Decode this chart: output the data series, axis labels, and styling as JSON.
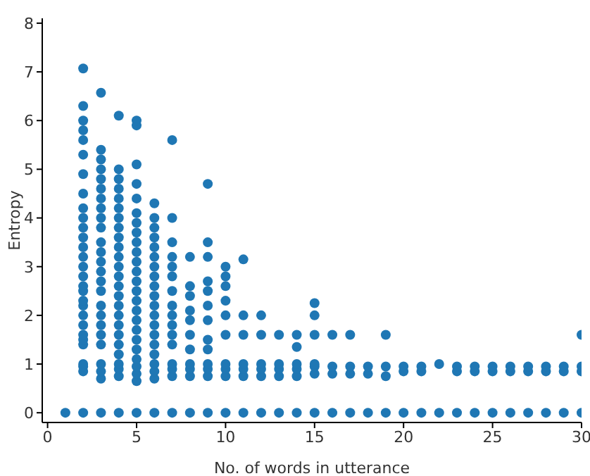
{
  "chart_data": {
    "type": "scatter",
    "xlabel": "No. of words in utterance",
    "ylabel": "Entropy",
    "xlim": [
      -0.3,
      30
    ],
    "ylim": [
      -0.2,
      8.1
    ],
    "xticks": [
      0,
      5,
      10,
      15,
      20,
      25,
      30
    ],
    "yticks": [
      0,
      1,
      2,
      3,
      4,
      5,
      6,
      7,
      8
    ],
    "grid": false,
    "legend": false,
    "marker": "circle",
    "series": [
      {
        "color": "#1f77b4",
        "x": [
          1,
          2,
          2,
          2,
          2,
          2,
          2,
          2,
          2,
          2,
          2,
          2,
          2,
          2,
          2,
          2,
          2,
          2,
          2,
          2,
          2,
          2,
          2,
          2,
          2,
          2,
          2,
          2,
          2,
          2,
          3,
          3,
          3,
          3,
          3,
          3,
          3,
          3,
          3,
          3,
          3,
          3,
          3,
          3,
          3,
          3,
          3,
          3,
          3,
          3,
          3,
          3,
          3,
          3,
          3,
          4,
          4,
          4,
          4,
          4,
          4,
          4,
          4,
          4,
          4,
          4,
          4,
          4,
          4,
          4,
          4,
          4,
          4,
          4,
          4,
          4,
          4,
          4,
          4,
          4,
          5,
          5,
          5,
          5,
          5,
          5,
          5,
          5,
          5,
          5,
          5,
          5,
          5,
          5,
          5,
          5,
          5,
          5,
          5,
          5,
          5,
          5,
          5,
          5,
          5,
          6,
          6,
          6,
          6,
          6,
          6,
          6,
          6,
          6,
          6,
          6,
          6,
          6,
          6,
          6,
          6,
          6,
          6,
          6,
          6,
          7,
          7,
          7,
          7,
          7,
          7,
          7,
          7,
          7,
          7,
          7,
          7,
          7,
          7,
          7,
          7,
          8,
          8,
          8,
          8,
          8,
          8,
          8,
          8,
          8,
          8,
          8,
          9,
          9,
          9,
          9,
          9,
          9,
          9,
          9,
          9,
          9,
          9,
          9,
          9,
          10,
          10,
          10,
          10,
          10,
          10,
          10,
          10,
          10,
          10,
          11,
          11,
          11,
          11,
          11,
          11,
          11,
          12,
          12,
          12,
          12,
          12,
          12,
          13,
          13,
          13,
          13,
          13,
          14,
          14,
          14,
          14,
          14,
          14,
          15,
          15,
          15,
          15,
          15,
          15,
          15,
          16,
          16,
          16,
          16,
          17,
          17,
          17,
          17,
          18,
          18,
          18,
          19,
          19,
          19,
          19,
          20,
          20,
          20,
          21,
          21,
          21,
          22,
          22,
          23,
          23,
          23,
          24,
          24,
          24,
          25,
          25,
          25,
          26,
          26,
          26,
          27,
          27,
          27,
          28,
          28,
          28,
          29,
          29,
          29,
          30,
          30,
          30,
          30
        ],
        "values": [
          0,
          0,
          0.85,
          0.95,
          1.0,
          1.4,
          1.5,
          1.6,
          1.8,
          2.0,
          2.2,
          2.3,
          2.5,
          2.6,
          2.8,
          3.0,
          3.2,
          3.4,
          3.6,
          3.8,
          4.0,
          4.2,
          4.5,
          4.9,
          5.3,
          5.6,
          5.8,
          6.0,
          6.3,
          7.07,
          0,
          0.7,
          0.85,
          1.0,
          1.4,
          1.6,
          1.8,
          2.0,
          2.2,
          2.5,
          2.7,
          2.9,
          3.1,
          3.3,
          3.5,
          3.8,
          4.0,
          4.2,
          4.4,
          4.6,
          4.8,
          5.0,
          5.2,
          5.4,
          6.57,
          0,
          0.75,
          0.9,
          1.0,
          1.2,
          1.4,
          1.6,
          1.8,
          2.0,
          2.2,
          2.4,
          2.6,
          2.8,
          3.0,
          3.2,
          3.4,
          3.6,
          3.8,
          4.0,
          4.2,
          4.4,
          4.6,
          4.8,
          5.0,
          6.1,
          0,
          0.65,
          0.8,
          0.95,
          1.1,
          1.3,
          1.5,
          1.7,
          1.9,
          2.1,
          2.3,
          2.5,
          2.7,
          2.9,
          3.1,
          3.3,
          3.5,
          3.7,
          3.9,
          4.1,
          4.4,
          4.7,
          5.1,
          5.9,
          6.0,
          0,
          0.7,
          0.85,
          1.0,
          1.2,
          1.4,
          1.6,
          1.8,
          2.0,
          2.2,
          2.4,
          2.6,
          2.8,
          3.0,
          3.2,
          3.4,
          3.6,
          3.8,
          4.0,
          4.3,
          0,
          0.75,
          0.9,
          1.0,
          1.4,
          1.6,
          1.8,
          2.0,
          2.2,
          2.5,
          2.8,
          3.0,
          3.2,
          3.5,
          4.0,
          5.6,
          0,
          0.75,
          0.9,
          1.0,
          1.3,
          1.6,
          1.9,
          2.1,
          2.4,
          2.6,
          3.2,
          0,
          0.75,
          0.9,
          1.0,
          1.3,
          1.5,
          1.9,
          2.2,
          2.5,
          2.7,
          3.2,
          3.5,
          4.7,
          0,
          0.75,
          0.9,
          1.0,
          1.6,
          2.0,
          2.3,
          2.6,
          2.8,
          3.0,
          0,
          0.75,
          0.9,
          1.0,
          1.6,
          2.0,
          3.15,
          0,
          0.75,
          0.9,
          1.0,
          1.6,
          2.0,
          0,
          0.75,
          0.9,
          1.0,
          1.6,
          0,
          0.75,
          0.9,
          1.0,
          1.35,
          1.6,
          0,
          0.8,
          0.95,
          1.0,
          1.6,
          2.0,
          2.25,
          0,
          0.8,
          0.95,
          1.6,
          0,
          0.8,
          0.95,
          1.6,
          0,
          0.8,
          0.95,
          0,
          0.75,
          0.95,
          1.6,
          0,
          0.85,
          0.95,
          0,
          0.85,
          0.95,
          0,
          1.0,
          0,
          0.85,
          0.95,
          0,
          0.85,
          0.95,
          0,
          0.85,
          0.95,
          0,
          0.85,
          0.95,
          0,
          0.85,
          0.95,
          0,
          0.85,
          0.95,
          0,
          0.85,
          0.95,
          0,
          0.85,
          0.95,
          1.6
        ]
      }
    ]
  }
}
